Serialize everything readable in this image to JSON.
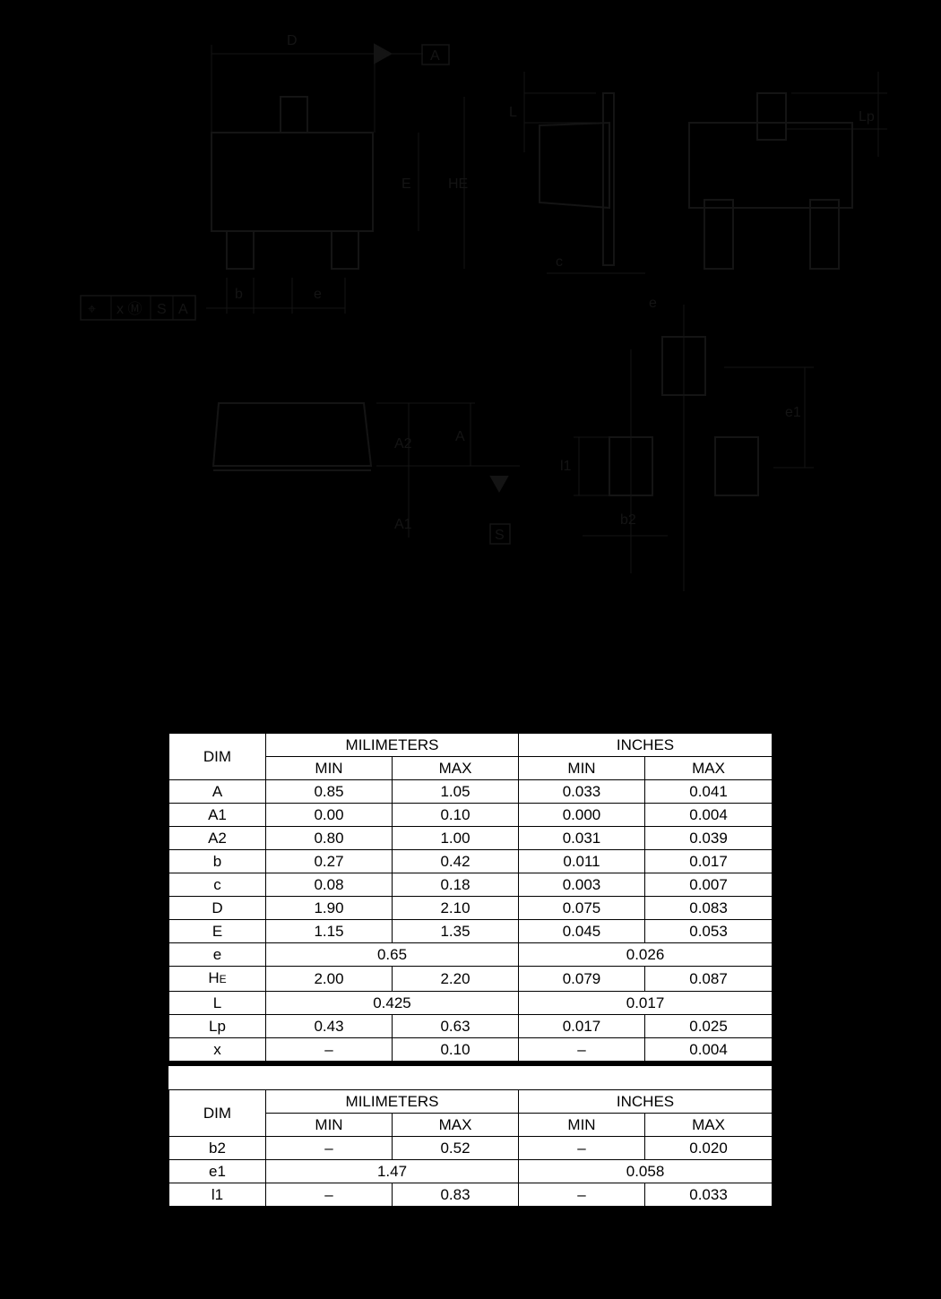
{
  "drawing_labels": {
    "D": "D",
    "datum_A": "A",
    "E": "E",
    "HE": "HE",
    "b": "b",
    "e": "e",
    "fcf": [
      "⌖",
      "x Ⓜ",
      "S",
      "A"
    ],
    "L": "L",
    "c": "c",
    "Lp": "Lp",
    "A2": "A2",
    "A": "A",
    "A1": "A1",
    "datum_S": "S",
    "e_top": "e",
    "e1": "e1",
    "l1": "l1",
    "b2": "b2"
  },
  "table1": {
    "header": {
      "dim": "DIM",
      "mm": "MILIMETERS",
      "in": "INCHES",
      "min": "MIN",
      "max": "MAX"
    },
    "rows": [
      {
        "dim": "A",
        "mm_min": "0.85",
        "mm_max": "1.05",
        "in_min": "0.033",
        "in_max": "0.041"
      },
      {
        "dim": "A1",
        "mm_min": "0.00",
        "mm_max": "0.10",
        "in_min": "0.000",
        "in_max": "0.004"
      },
      {
        "dim": "A2",
        "mm_min": "0.80",
        "mm_max": "1.00",
        "in_min": "0.031",
        "in_max": "0.039"
      },
      {
        "dim": "b",
        "mm_min": "0.27",
        "mm_max": "0.42",
        "in_min": "0.011",
        "in_max": "0.017"
      },
      {
        "dim": "c",
        "mm_min": "0.08",
        "mm_max": "0.18",
        "in_min": "0.003",
        "in_max": "0.007"
      },
      {
        "dim": "D",
        "mm_min": "1.90",
        "mm_max": "2.10",
        "in_min": "0.075",
        "in_max": "0.083"
      },
      {
        "dim": "E",
        "mm_min": "1.15",
        "mm_max": "1.35",
        "in_min": "0.045",
        "in_max": "0.053"
      },
      {
        "dim": "e",
        "mm": "0.65",
        "in": "0.026"
      },
      {
        "dim": "HE",
        "mm_min": "2.00",
        "mm_max": "2.20",
        "in_min": "0.079",
        "in_max": "0.087"
      },
      {
        "dim": "L",
        "mm": "0.425",
        "in": "0.017"
      },
      {
        "dim": "Lp",
        "mm_min": "0.43",
        "mm_max": "0.63",
        "in_min": "0.017",
        "in_max": "0.025"
      },
      {
        "dim": "x",
        "mm_min": "–",
        "mm_max": "0.10",
        "in_min": "–",
        "in_max": "0.004"
      }
    ]
  },
  "table2": {
    "header": {
      "dim": "DIM",
      "mm": "MILIMETERS",
      "in": "INCHES",
      "min": "MIN",
      "max": "MAX"
    },
    "rows": [
      {
        "dim": "b2",
        "mm_min": "–",
        "mm_max": "0.52",
        "in_min": "–",
        "in_max": "0.020"
      },
      {
        "dim": "e1",
        "mm": "1.47",
        "in": "0.058"
      },
      {
        "dim": "l1",
        "mm_min": "–",
        "mm_max": "0.83",
        "in_min": "–",
        "in_max": "0.033"
      }
    ]
  },
  "colors": {
    "background": "#000000",
    "drawing_line": "#141414",
    "table_bg": "#ffffff"
  }
}
